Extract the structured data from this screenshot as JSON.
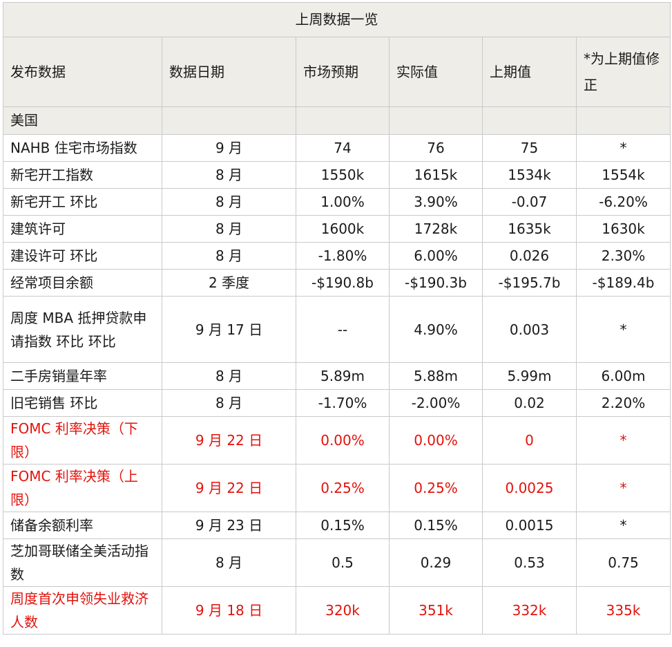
{
  "title": "上周数据一览",
  "headers": [
    "发布数据",
    "数据日期",
    "市场预期",
    "实际值",
    "上期值",
    "*为上期值修正"
  ],
  "section": "美国",
  "rows": [
    {
      "name": "NAHB 住宅市场指数",
      "date": "9 月",
      "expected": "74",
      "actual": "76",
      "previous": "75",
      "revised": "*",
      "highlight": false
    },
    {
      "name": "新宅开工指数",
      "date": "8 月",
      "expected": "1550k",
      "actual": "1615k",
      "previous": "1534k",
      "revised": "1554k",
      "highlight": false
    },
    {
      "name": "新宅开工  环比",
      "date": "8 月",
      "expected": "1.00%",
      "actual": "3.90%",
      "previous": "-0.07",
      "revised": "-6.20%",
      "highlight": false
    },
    {
      "name": "建筑许可",
      "date": "8 月",
      "expected": "1600k",
      "actual": "1728k",
      "previous": "1635k",
      "revised": "1630k",
      "highlight": false
    },
    {
      "name": "建设许可  环比",
      "date": "8 月",
      "expected": "-1.80%",
      "actual": "6.00%",
      "previous": "0.026",
      "revised": "2.30%",
      "highlight": false
    },
    {
      "name": "经常项目余额",
      "date": "2 季度",
      "expected": "-$190.8b",
      "actual": "-$190.3b",
      "previous": "-$195.7b",
      "revised": "-$189.4b",
      "highlight": false
    },
    {
      "name": "周度 MBA 抵押贷款申请指数  环比  环比",
      "date": "9 月 17 日",
      "expected": "--",
      "actual": "4.90%",
      "previous": "0.003",
      "revised": "*",
      "highlight": false
    },
    {
      "name": "二手房销量年率",
      "date": "8 月",
      "expected": "5.89m",
      "actual": "5.88m",
      "previous": "5.99m",
      "revised": "6.00m",
      "highlight": false
    },
    {
      "name": "旧宅销售  环比",
      "date": "8 月",
      "expected": "-1.70%",
      "actual": "-2.00%",
      "previous": "0.02",
      "revised": "2.20%",
      "highlight": false
    },
    {
      "name": "FOMC 利率决策（下限）",
      "date": "9 月 22 日",
      "expected": "0.00%",
      "actual": "0.00%",
      "previous": "0",
      "revised": "*",
      "highlight": true
    },
    {
      "name": "FOMC 利率决策（上限）",
      "date": "9 月 22 日",
      "expected": "0.25%",
      "actual": "0.25%",
      "previous": "0.0025",
      "revised": "*",
      "highlight": true
    },
    {
      "name": "储备余额利率",
      "date": "9 月 23 日",
      "expected": "0.15%",
      "actual": "0.15%",
      "previous": "0.0015",
      "revised": "*",
      "highlight": false
    },
    {
      "name": "芝加哥联储全美活动指数",
      "date": "8 月",
      "expected": "0.5",
      "actual": "0.29",
      "previous": "0.53",
      "revised": "0.75",
      "highlight": false
    },
    {
      "name": "周度首次申领失业救济人数",
      "date": "9 月 18 日",
      "expected": "320k",
      "actual": "351k",
      "previous": "332k",
      "revised": "335k",
      "highlight": true
    }
  ]
}
